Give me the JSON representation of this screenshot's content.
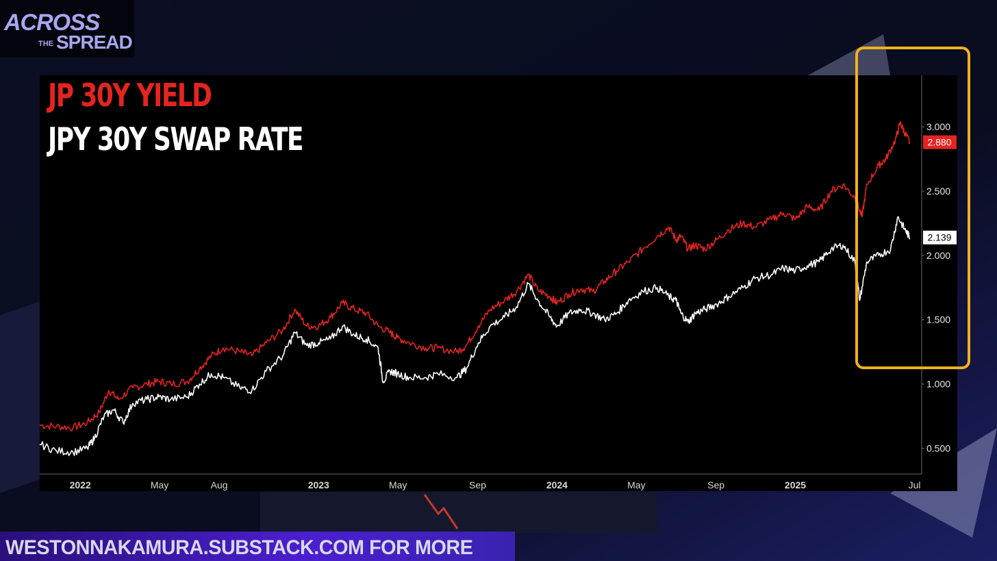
{
  "brand": {
    "line1": "ACROSS",
    "line2": "THE",
    "line3": "SPREAD"
  },
  "footer": {
    "text": "WESTONNAKAMURA.SUBSTACK.COM FOR MORE"
  },
  "colors": {
    "series_red": "#e42420",
    "series_white": "#ffffff",
    "highlight": "#f2b01e",
    "footer": "#4a1fd0"
  },
  "chart_data": {
    "type": "line",
    "title_lines": [
      "JP 30Y YIELD",
      "JPY 30Y SWAP RATE"
    ],
    "x_tick_labels": [
      "2022",
      "May",
      "Aug",
      "2023",
      "May",
      "Sep",
      "2024",
      "May",
      "Sep",
      "2025",
      "Jul"
    ],
    "x_ticks": [
      2022.0,
      2022.333,
      2022.583,
      2023.0,
      2023.333,
      2023.667,
      2024.0,
      2024.333,
      2024.667,
      2025.0,
      2025.5
    ],
    "xlim": [
      2021.83,
      2025.53
    ],
    "y_tick_labels": [
      "0.500",
      "1.000",
      "1.500",
      "2.000",
      "2.500",
      "3.000"
    ],
    "y_ticks": [
      0.5,
      1.0,
      1.5,
      2.0,
      2.5,
      3.0
    ],
    "ylim": [
      0.3,
      3.4
    ],
    "series": [
      {
        "name": "JP 30Y YIELD",
        "color": "#e42420",
        "last_value": "2.880",
        "points": [
          [
            2021.83,
            0.68
          ],
          [
            2021.9,
            0.67
          ],
          [
            2021.97,
            0.66
          ],
          [
            2022.03,
            0.7
          ],
          [
            2022.08,
            0.78
          ],
          [
            2022.12,
            0.95
          ],
          [
            2022.16,
            0.88
          ],
          [
            2022.22,
            0.97
          ],
          [
            2022.28,
            1.0
          ],
          [
            2022.33,
            1.02
          ],
          [
            2022.38,
            1.0
          ],
          [
            2022.45,
            1.02
          ],
          [
            2022.5,
            1.12
          ],
          [
            2022.55,
            1.22
          ],
          [
            2022.6,
            1.28
          ],
          [
            2022.67,
            1.25
          ],
          [
            2022.72,
            1.22
          ],
          [
            2022.78,
            1.32
          ],
          [
            2022.85,
            1.42
          ],
          [
            2022.9,
            1.58
          ],
          [
            2022.95,
            1.45
          ],
          [
            2023.0,
            1.45
          ],
          [
            2023.05,
            1.52
          ],
          [
            2023.1,
            1.63
          ],
          [
            2023.15,
            1.58
          ],
          [
            2023.2,
            1.55
          ],
          [
            2023.25,
            1.45
          ],
          [
            2023.3,
            1.4
          ],
          [
            2023.33,
            1.36
          ],
          [
            2023.38,
            1.32
          ],
          [
            2023.45,
            1.28
          ],
          [
            2023.5,
            1.28
          ],
          [
            2023.58,
            1.25
          ],
          [
            2023.62,
            1.3
          ],
          [
            2023.67,
            1.45
          ],
          [
            2023.72,
            1.58
          ],
          [
            2023.78,
            1.65
          ],
          [
            2023.83,
            1.72
          ],
          [
            2023.88,
            1.85
          ],
          [
            2023.92,
            1.73
          ],
          [
            2023.97,
            1.68
          ],
          [
            2024.0,
            1.63
          ],
          [
            2024.05,
            1.7
          ],
          [
            2024.1,
            1.74
          ],
          [
            2024.15,
            1.72
          ],
          [
            2024.2,
            1.8
          ],
          [
            2024.25,
            1.88
          ],
          [
            2024.3,
            1.95
          ],
          [
            2024.36,
            2.05
          ],
          [
            2024.42,
            2.15
          ],
          [
            2024.47,
            2.22
          ],
          [
            2024.5,
            2.12
          ],
          [
            2024.52,
            2.15
          ],
          [
            2024.55,
            2.05
          ],
          [
            2024.58,
            2.08
          ],
          [
            2024.62,
            2.05
          ],
          [
            2024.67,
            2.12
          ],
          [
            2024.72,
            2.2
          ],
          [
            2024.78,
            2.25
          ],
          [
            2024.83,
            2.22
          ],
          [
            2024.9,
            2.28
          ],
          [
            2024.95,
            2.33
          ],
          [
            2025.0,
            2.28
          ],
          [
            2025.05,
            2.38
          ],
          [
            2025.1,
            2.35
          ],
          [
            2025.15,
            2.5
          ],
          [
            2025.2,
            2.55
          ],
          [
            2025.25,
            2.45
          ],
          [
            2025.28,
            2.3
          ],
          [
            2025.3,
            2.55
          ],
          [
            2025.35,
            2.7
          ],
          [
            2025.38,
            2.75
          ],
          [
            2025.42,
            2.9
          ],
          [
            2025.44,
            3.03
          ],
          [
            2025.46,
            2.95
          ],
          [
            2025.48,
            2.88
          ]
        ]
      },
      {
        "name": "JPY 30Y SWAP RATE",
        "color": "#ffffff",
        "last_value": "2.139",
        "points": [
          [
            2021.83,
            0.53
          ],
          [
            2021.9,
            0.48
          ],
          [
            2021.97,
            0.47
          ],
          [
            2022.03,
            0.5
          ],
          [
            2022.06,
            0.58
          ],
          [
            2022.1,
            0.75
          ],
          [
            2022.14,
            0.8
          ],
          [
            2022.18,
            0.7
          ],
          [
            2022.22,
            0.85
          ],
          [
            2022.28,
            0.88
          ],
          [
            2022.33,
            0.9
          ],
          [
            2022.38,
            0.88
          ],
          [
            2022.45,
            0.9
          ],
          [
            2022.5,
            1.0
          ],
          [
            2022.55,
            1.08
          ],
          [
            2022.6,
            1.05
          ],
          [
            2022.67,
            0.97
          ],
          [
            2022.72,
            0.95
          ],
          [
            2022.78,
            1.1
          ],
          [
            2022.85,
            1.22
          ],
          [
            2022.9,
            1.4
          ],
          [
            2022.95,
            1.3
          ],
          [
            2023.0,
            1.32
          ],
          [
            2023.05,
            1.35
          ],
          [
            2023.1,
            1.45
          ],
          [
            2023.15,
            1.38
          ],
          [
            2023.2,
            1.35
          ],
          [
            2023.25,
            1.28
          ],
          [
            2023.27,
            1.02
          ],
          [
            2023.3,
            1.1
          ],
          [
            2023.33,
            1.08
          ],
          [
            2023.38,
            1.05
          ],
          [
            2023.45,
            1.05
          ],
          [
            2023.5,
            1.08
          ],
          [
            2023.58,
            1.05
          ],
          [
            2023.62,
            1.12
          ],
          [
            2023.67,
            1.32
          ],
          [
            2023.72,
            1.45
          ],
          [
            2023.78,
            1.52
          ],
          [
            2023.83,
            1.6
          ],
          [
            2023.88,
            1.78
          ],
          [
            2023.92,
            1.65
          ],
          [
            2023.97,
            1.52
          ],
          [
            2024.0,
            1.45
          ],
          [
            2024.05,
            1.55
          ],
          [
            2024.1,
            1.58
          ],
          [
            2024.15,
            1.55
          ],
          [
            2024.2,
            1.5
          ],
          [
            2024.25,
            1.55
          ],
          [
            2024.3,
            1.65
          ],
          [
            2024.36,
            1.72
          ],
          [
            2024.42,
            1.75
          ],
          [
            2024.47,
            1.68
          ],
          [
            2024.5,
            1.65
          ],
          [
            2024.52,
            1.55
          ],
          [
            2024.55,
            1.48
          ],
          [
            2024.58,
            1.55
          ],
          [
            2024.62,
            1.58
          ],
          [
            2024.67,
            1.62
          ],
          [
            2024.72,
            1.68
          ],
          [
            2024.78,
            1.75
          ],
          [
            2024.83,
            1.82
          ],
          [
            2024.9,
            1.85
          ],
          [
            2024.95,
            1.9
          ],
          [
            2025.0,
            1.88
          ],
          [
            2025.05,
            1.92
          ],
          [
            2025.1,
            1.95
          ],
          [
            2025.15,
            2.05
          ],
          [
            2025.2,
            2.08
          ],
          [
            2025.25,
            1.95
          ],
          [
            2025.27,
            1.65
          ],
          [
            2025.3,
            1.95
          ],
          [
            2025.35,
            2.0
          ],
          [
            2025.4,
            2.05
          ],
          [
            2025.43,
            2.3
          ],
          [
            2025.46,
            2.2
          ],
          [
            2025.48,
            2.139
          ]
        ]
      }
    ],
    "highlight_box": {
      "x_range": [
        2025.1,
        2025.53
      ],
      "y_range": [
        1.14,
        3.5
      ]
    }
  }
}
